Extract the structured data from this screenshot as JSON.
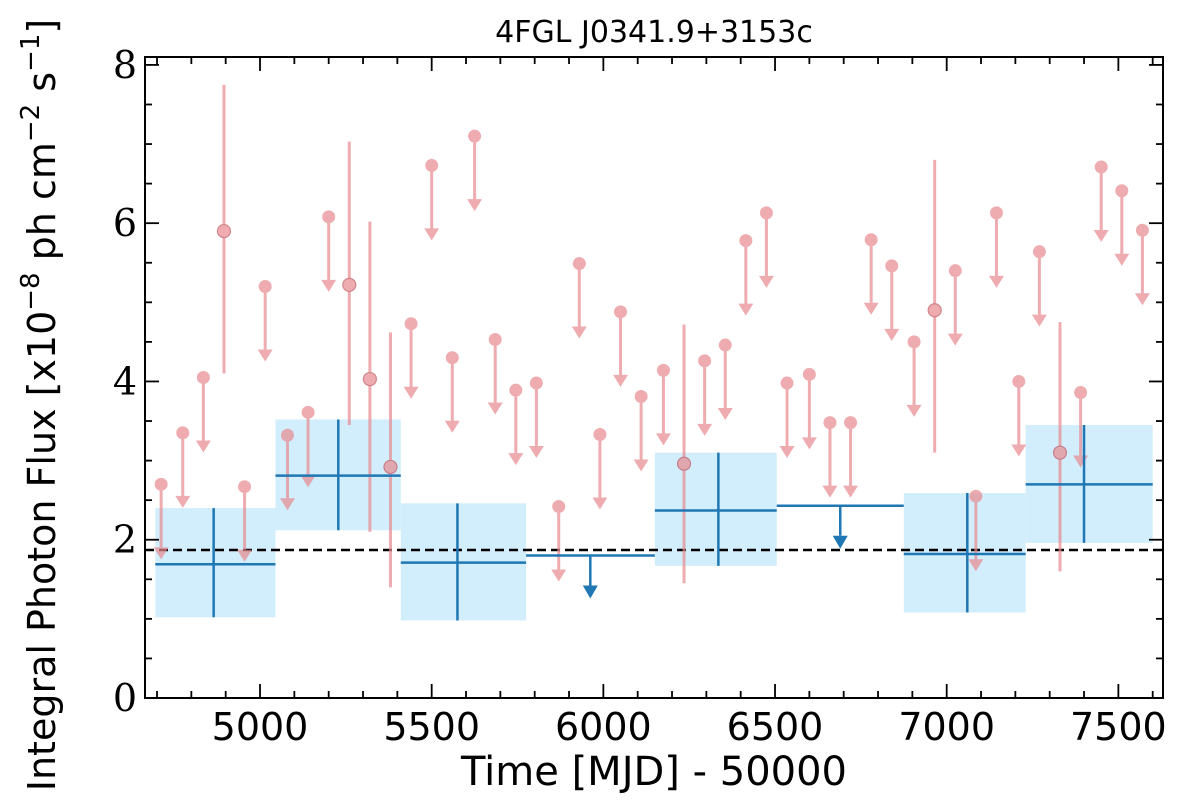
{
  "chart_data": {
    "type": "scatter",
    "title": "4FGL J0341.9+3153c",
    "xlabel": "Time [MJD] - 50000",
    "ylabel": "Integral Photon Flux [x10^-8 ph cm^-2 s^-1]",
    "ylabel_parts": {
      "main": "Integral Photon Flux [x10",
      "exp1": "−8",
      "mid": " ph cm",
      "exp2": "−2",
      "mid2": " s",
      "exp3": "−1",
      "end": "]"
    },
    "xlim": [
      4665,
      7630
    ],
    "ylim": [
      0,
      8.1
    ],
    "xticks": [
      5000,
      5500,
      6000,
      6500,
      7000,
      7500
    ],
    "yticks": [
      0,
      2,
      4,
      6,
      8
    ],
    "grid": false,
    "reference_line": {
      "y": 1.87,
      "style": "dashed",
      "color": "#000000"
    },
    "colors": {
      "short_bins": "#e88a8f",
      "long_bins": "#1f77b4",
      "long_bins_box": "#d2eefc",
      "axis": "#000000"
    },
    "short_bins_detections": [
      {
        "x": 4895,
        "y": 5.9,
        "ylo": 4.1,
        "yhi": 7.75
      },
      {
        "x": 5260,
        "y": 5.22,
        "ylo": 3.45,
        "yhi": 7.03
      },
      {
        "x": 5320,
        "y": 4.03,
        "ylo": 2.1,
        "yhi": 6.02
      },
      {
        "x": 5380,
        "y": 2.92,
        "ylo": 1.4,
        "yhi": 4.62
      },
      {
        "x": 6235,
        "y": 2.96,
        "ylo": 1.45,
        "yhi": 4.72
      },
      {
        "x": 6965,
        "y": 4.9,
        "ylo": 3.1,
        "yhi": 6.8
      },
      {
        "x": 7330,
        "y": 3.1,
        "ylo": 1.6,
        "yhi": 4.75
      }
    ],
    "short_bins_upper_limits": [
      {
        "x": 4712,
        "y": 2.7
      },
      {
        "x": 4775,
        "y": 3.35
      },
      {
        "x": 4835,
        "y": 4.05
      },
      {
        "x": 4955,
        "y": 2.67
      },
      {
        "x": 5015,
        "y": 5.2
      },
      {
        "x": 5080,
        "y": 3.32
      },
      {
        "x": 5140,
        "y": 3.61
      },
      {
        "x": 5200,
        "y": 6.08
      },
      {
        "x": 5440,
        "y": 4.73
      },
      {
        "x": 5500,
        "y": 6.73
      },
      {
        "x": 5560,
        "y": 4.3
      },
      {
        "x": 5625,
        "y": 7.1
      },
      {
        "x": 5685,
        "y": 4.53
      },
      {
        "x": 5745,
        "y": 3.89
      },
      {
        "x": 5805,
        "y": 3.98
      },
      {
        "x": 5870,
        "y": 2.42
      },
      {
        "x": 5930,
        "y": 5.49
      },
      {
        "x": 5990,
        "y": 3.33
      },
      {
        "x": 6050,
        "y": 4.88
      },
      {
        "x": 6110,
        "y": 3.81
      },
      {
        "x": 6175,
        "y": 4.14
      },
      {
        "x": 6295,
        "y": 4.26
      },
      {
        "x": 6355,
        "y": 4.46
      },
      {
        "x": 6415,
        "y": 5.78
      },
      {
        "x": 6475,
        "y": 6.13
      },
      {
        "x": 6535,
        "y": 3.98
      },
      {
        "x": 6600,
        "y": 4.09
      },
      {
        "x": 6660,
        "y": 3.48
      },
      {
        "x": 6720,
        "y": 3.48
      },
      {
        "x": 6780,
        "y": 5.79
      },
      {
        "x": 6840,
        "y": 5.46
      },
      {
        "x": 6905,
        "y": 4.5
      },
      {
        "x": 7025,
        "y": 5.4
      },
      {
        "x": 7085,
        "y": 2.55
      },
      {
        "x": 7145,
        "y": 6.13
      },
      {
        "x": 7210,
        "y": 4.0
      },
      {
        "x": 7270,
        "y": 5.64
      },
      {
        "x": 7390,
        "y": 3.86
      },
      {
        "x": 7450,
        "y": 6.71
      },
      {
        "x": 7510,
        "y": 6.41
      },
      {
        "x": 7570,
        "y": 5.91
      }
    ],
    "long_bins_detections": [
      {
        "x0": 4695,
        "x1": 5045,
        "xc": 4865,
        "y": 1.69,
        "ylo": 1.02,
        "yhi": 2.4
      },
      {
        "x0": 5045,
        "x1": 5410,
        "xc": 5228,
        "y": 2.81,
        "ylo": 2.12,
        "yhi": 3.52
      },
      {
        "x0": 5410,
        "x1": 5775,
        "xc": 5575,
        "y": 1.71,
        "ylo": 0.98,
        "yhi": 2.46
      },
      {
        "x0": 6150,
        "x1": 6505,
        "xc": 6335,
        "y": 2.37,
        "ylo": 1.67,
        "yhi": 3.1
      },
      {
        "x0": 6875,
        "x1": 7230,
        "xc": 7060,
        "y": 1.82,
        "ylo": 1.08,
        "yhi": 2.59
      },
      {
        "x0": 7230,
        "x1": 7600,
        "xc": 7400,
        "y": 2.7,
        "ylo": 1.96,
        "yhi": 3.45
      }
    ],
    "long_bins_upper_limits": [
      {
        "x0": 5775,
        "x1": 6150,
        "xc": 5962,
        "y": 1.8
      },
      {
        "x0": 6505,
        "x1": 6875,
        "xc": 6690,
        "y": 2.43
      }
    ]
  }
}
